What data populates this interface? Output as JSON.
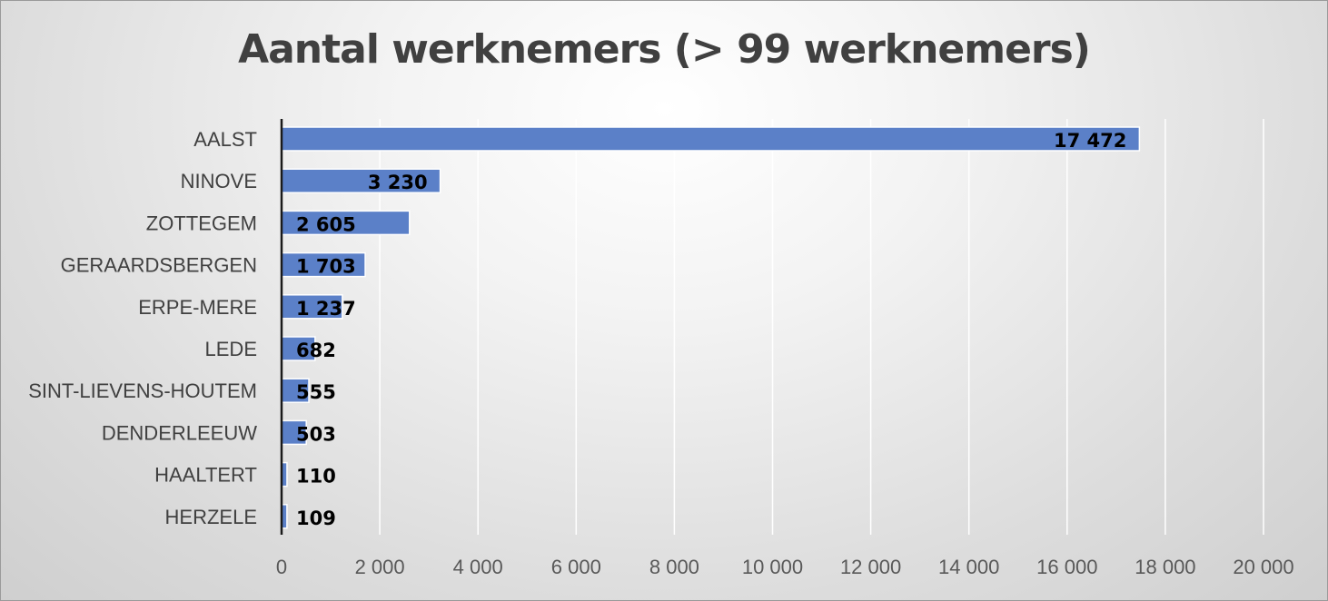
{
  "chart_data": {
    "type": "bar",
    "orientation": "horizontal",
    "title": "Aantal werknemers (> 99 werknemers)",
    "xlabel": "",
    "ylabel": "",
    "categories": [
      "AALST",
      "NINOVE",
      "ZOTTEGEM",
      "GERAARDSBERGEN",
      "ERPE-MERE",
      "LEDE",
      "SINT-LIEVENS-HOUTEM",
      "DENDERLEEUW",
      "HAALTERT",
      "HERZELE"
    ],
    "values": [
      17472,
      3230,
      2605,
      1703,
      1237,
      682,
      555,
      503,
      110,
      109
    ],
    "value_labels": [
      "17 472",
      "3 230",
      "2 605",
      "1 703",
      "1 237",
      "682",
      "555",
      "503",
      "110",
      "109"
    ],
    "xlim": [
      0,
      20000
    ],
    "x_ticks": [
      0,
      2000,
      4000,
      6000,
      8000,
      10000,
      12000,
      14000,
      16000,
      18000,
      20000
    ],
    "x_tick_labels": [
      "0",
      "2 000",
      "4 000",
      "6 000",
      "8 000",
      "10 000",
      "12 000",
      "14 000",
      "16 000",
      "18 000",
      "20 000"
    ],
    "grid": "vertical",
    "legend": "none",
    "bar_color": "#5b80c8",
    "bar_edge_color": "#ffffff",
    "grid_color": "#ffffff",
    "axis_color": "#1a1a1a"
  }
}
